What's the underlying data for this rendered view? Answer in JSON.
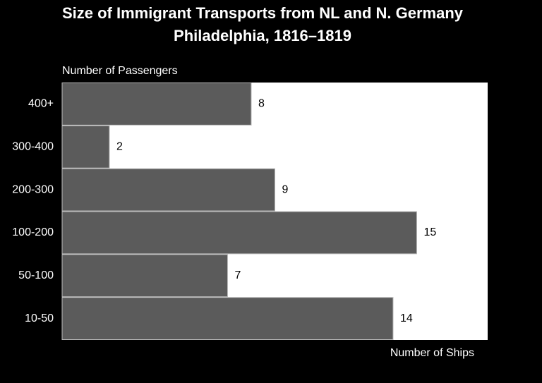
{
  "chart_data": {
    "type": "barh",
    "title": "Size of Immigrant Transports from NL and N. Germany",
    "subtitle": "Philadelphia, 1816–1819",
    "y_label": "Number of Passengers",
    "x_label": "Number of Ships",
    "categories": [
      "400+",
      "300-400",
      "200-300",
      "100-200",
      "50-100",
      "10-50"
    ],
    "values": [
      8,
      2,
      9,
      15,
      7,
      14
    ],
    "color": "#5b5b5b",
    "xlim": [
      0,
      18
    ]
  }
}
